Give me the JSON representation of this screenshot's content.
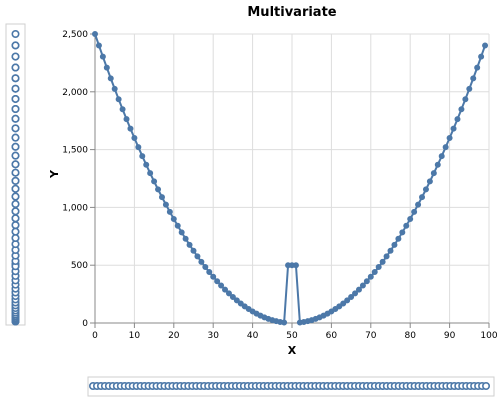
{
  "colors": {
    "series": "#4c78a8",
    "grid": "#dddddd",
    "axis": "#888888"
  },
  "chart_data": {
    "type": "line",
    "title": "Multivariate",
    "xlabel": "X",
    "ylabel": "Y",
    "xlim": [
      0,
      100
    ],
    "ylim": [
      0,
      2500
    ],
    "grid": true,
    "x_ticks": [
      0,
      10,
      20,
      30,
      40,
      50,
      60,
      70,
      80,
      90,
      100
    ],
    "x_tick_labels": [
      "0",
      "10",
      "20",
      "30",
      "40",
      "50",
      "60",
      "70",
      "80",
      "90",
      "100"
    ],
    "y_ticks": [
      0,
      500,
      1000,
      1500,
      2000,
      2500
    ],
    "y_tick_labels": [
      "0",
      "500",
      "1,000",
      "1,500",
      "2,000",
      "2,500"
    ],
    "series": [
      {
        "x": [
          0,
          1,
          2,
          3,
          4,
          5,
          6,
          7,
          8,
          9,
          10,
          11,
          12,
          13,
          14,
          15,
          16,
          17,
          18,
          19,
          20,
          21,
          22,
          23,
          24,
          25,
          26,
          27,
          28,
          29,
          30,
          31,
          32,
          33,
          34,
          35,
          36,
          37,
          38,
          39,
          40,
          41,
          42,
          43,
          44,
          45,
          46,
          47,
          48,
          49,
          50,
          51,
          52,
          53,
          54,
          55,
          56,
          57,
          58,
          59,
          60,
          61,
          62,
          63,
          64,
          65,
          66,
          67,
          68,
          69,
          70,
          71,
          72,
          73,
          74,
          75,
          76,
          77,
          78,
          79,
          80,
          81,
          82,
          83,
          84,
          85,
          86,
          87,
          88,
          89,
          90,
          91,
          92,
          93,
          94,
          95,
          96,
          97,
          98,
          99
        ],
        "values": [
          2500,
          2401,
          2304,
          2209,
          2116,
          2025,
          1936,
          1849,
          1764,
          1681,
          1600,
          1521,
          1444,
          1369,
          1296,
          1225,
          1156,
          1089,
          1024,
          961,
          900,
          841,
          784,
          729,
          676,
          625,
          576,
          529,
          484,
          441,
          400,
          361,
          324,
          289,
          256,
          225,
          196,
          169,
          144,
          121,
          100,
          81,
          64,
          49,
          36,
          25,
          16,
          9,
          4,
          500,
          500,
          500,
          4,
          9,
          16,
          25,
          36,
          49,
          64,
          81,
          100,
          121,
          144,
          169,
          196,
          225,
          256,
          289,
          324,
          361,
          400,
          441,
          484,
          529,
          576,
          625,
          676,
          729,
          784,
          841,
          900,
          961,
          1024,
          1089,
          1156,
          1225,
          1296,
          1369,
          1444,
          1521,
          1600,
          1681,
          1764,
          1849,
          1936,
          2025,
          2116,
          2209,
          2304,
          2401
        ]
      }
    ]
  }
}
